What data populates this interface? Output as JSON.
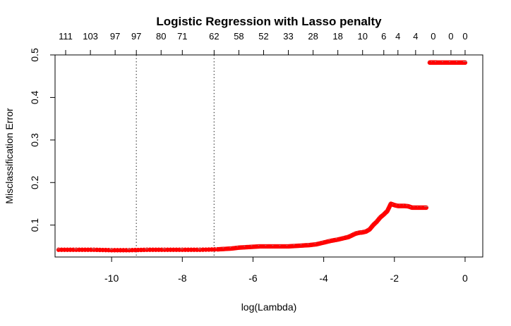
{
  "chart_data": {
    "type": "scatter",
    "title": "Logistic Regression with Lasso penalty",
    "xlabel": "log(Lambda)",
    "ylabel": "Misclassification Error",
    "xlim": [
      -11.6,
      0.5
    ],
    "ylim": [
      0.025,
      0.5
    ],
    "x_ticks": [
      -10,
      -8,
      -6,
      -4,
      -2,
      0
    ],
    "x_tick_labels": [
      "-10",
      "-8",
      "-6",
      "-4",
      "-2",
      "0"
    ],
    "y_ticks": [
      0.1,
      0.2,
      0.3,
      0.4,
      0.5
    ],
    "y_tick_labels": [
      "0.1",
      "0.2",
      "0.3",
      "0.4",
      "0.5"
    ],
    "top_axis": {
      "positions": [
        -11.3,
        -10.6,
        -9.9,
        -9.3,
        -8.6,
        -8.0,
        -7.1,
        -6.4,
        -5.7,
        -5.0,
        -4.3,
        -3.6,
        -2.9,
        -2.3,
        -1.9,
        -1.4,
        -0.9,
        -0.4,
        0.0
      ],
      "labels": [
        "111",
        "103",
        "97",
        "97",
        "80",
        "71",
        "62",
        "58",
        "52",
        "33",
        "28",
        "18",
        "10",
        "6",
        "4",
        "4",
        "0",
        "0",
        "0"
      ]
    },
    "vlines": [
      -9.3,
      -7.1
    ],
    "series": [
      {
        "color": "#ff0000",
        "x": [
          -11.5,
          -11.0,
          -10.5,
          -10.0,
          -9.5,
          -9.0,
          -8.5,
          -8.0,
          -7.5,
          -7.0,
          -6.8,
          -6.6,
          -6.4,
          -6.2,
          -6.0,
          -5.8,
          -5.6,
          -5.4,
          -5.2,
          -5.0,
          -4.8,
          -4.6,
          -4.4,
          -4.2,
          -4.0,
          -3.8,
          -3.6,
          -3.4,
          -3.3,
          -3.2,
          -3.1,
          -3.0,
          -2.9,
          -2.8,
          -2.7,
          -2.6,
          -2.5,
          -2.4,
          -2.3,
          -2.2,
          -2.1,
          -2.0,
          -1.9,
          -1.8,
          -1.7,
          -1.6,
          -1.5,
          -1.4,
          -1.3,
          -1.2,
          -1.1,
          -1.0,
          -0.9,
          -0.8,
          -0.6,
          -0.4,
          -0.2,
          0.0
        ],
        "values": [
          0.042,
          0.042,
          0.042,
          0.041,
          0.041,
          0.042,
          0.042,
          0.042,
          0.042,
          0.043,
          0.044,
          0.045,
          0.047,
          0.048,
          0.049,
          0.05,
          0.05,
          0.05,
          0.05,
          0.05,
          0.051,
          0.052,
          0.053,
          0.055,
          0.059,
          0.063,
          0.066,
          0.07,
          0.072,
          0.076,
          0.08,
          0.082,
          0.083,
          0.085,
          0.09,
          0.1,
          0.108,
          0.118,
          0.125,
          0.133,
          0.15,
          0.147,
          0.145,
          0.145,
          0.145,
          0.144,
          0.141,
          0.141,
          0.141,
          0.141,
          0.141,
          0.482,
          0.482,
          0.482,
          0.482,
          0.482,
          0.482,
          0.482
        ]
      }
    ]
  }
}
